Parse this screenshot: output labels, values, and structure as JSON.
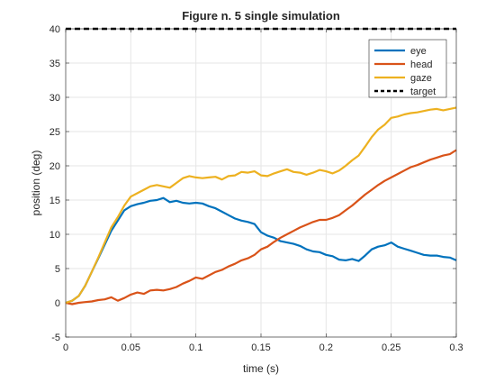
{
  "chart_data": {
    "type": "line",
    "title": "Figure n. 5 single simulation",
    "xlabel": "time (s)",
    "ylabel": "position (deg)",
    "xlim": [
      0,
      0.3
    ],
    "ylim": [
      -5,
      40
    ],
    "xticks": [
      0,
      0.05,
      0.1,
      0.15,
      0.2,
      0.25,
      0.3
    ],
    "xtick_labels": [
      "0",
      "0.05",
      "0.1",
      "0.15",
      "0.2",
      "0.25",
      "0.3"
    ],
    "yticks": [
      -5,
      0,
      5,
      10,
      15,
      20,
      25,
      30,
      35,
      40
    ],
    "ytick_labels": [
      "-5",
      "0",
      "5",
      "10",
      "15",
      "20",
      "25",
      "30",
      "35",
      "40"
    ],
    "grid": true,
    "legend_position": "top-right",
    "series": [
      {
        "name": "eye",
        "color": "#0072BD",
        "style": "solid",
        "x": [
          0,
          0.005,
          0.01,
          0.015,
          0.02,
          0.025,
          0.03,
          0.035,
          0.04,
          0.045,
          0.05,
          0.055,
          0.06,
          0.065,
          0.07,
          0.075,
          0.08,
          0.085,
          0.09,
          0.095,
          0.1,
          0.105,
          0.11,
          0.115,
          0.12,
          0.125,
          0.13,
          0.135,
          0.14,
          0.145,
          0.15,
          0.155,
          0.16,
          0.165,
          0.17,
          0.175,
          0.18,
          0.185,
          0.19,
          0.195,
          0.2,
          0.205,
          0.21,
          0.215,
          0.22,
          0.225,
          0.23,
          0.235,
          0.24,
          0.245,
          0.25,
          0.255,
          0.26,
          0.265,
          0.27,
          0.275,
          0.28,
          0.285,
          0.29,
          0.295,
          0.3
        ],
        "y": [
          0,
          0.3,
          1.0,
          2.5,
          4.5,
          6.5,
          8.5,
          10.5,
          12.0,
          13.5,
          14.1,
          14.4,
          14.6,
          14.9,
          15.0,
          15.3,
          14.7,
          14.9,
          14.6,
          14.5,
          14.6,
          14.5,
          14.1,
          13.8,
          13.3,
          12.8,
          12.3,
          12.0,
          11.8,
          11.5,
          10.3,
          9.8,
          9.5,
          9.0,
          8.8,
          8.6,
          8.3,
          7.8,
          7.5,
          7.4,
          7.0,
          6.8,
          6.3,
          6.2,
          6.4,
          6.1,
          6.9,
          7.8,
          8.2,
          8.4,
          8.8,
          8.2,
          7.9,
          7.6,
          7.3,
          7.0,
          6.9,
          6.9,
          6.7,
          6.6,
          6.2
        ]
      },
      {
        "name": "head",
        "color": "#D95319",
        "style": "solid",
        "x": [
          0,
          0.005,
          0.01,
          0.015,
          0.02,
          0.025,
          0.03,
          0.035,
          0.04,
          0.045,
          0.05,
          0.055,
          0.06,
          0.065,
          0.07,
          0.075,
          0.08,
          0.085,
          0.09,
          0.095,
          0.1,
          0.105,
          0.11,
          0.115,
          0.12,
          0.125,
          0.13,
          0.135,
          0.14,
          0.145,
          0.15,
          0.155,
          0.16,
          0.165,
          0.17,
          0.175,
          0.18,
          0.185,
          0.19,
          0.195,
          0.2,
          0.205,
          0.21,
          0.215,
          0.22,
          0.225,
          0.23,
          0.235,
          0.24,
          0.245,
          0.25,
          0.255,
          0.26,
          0.265,
          0.27,
          0.275,
          0.28,
          0.285,
          0.29,
          0.295,
          0.3
        ],
        "y": [
          0,
          -0.2,
          0.0,
          0.1,
          0.2,
          0.4,
          0.5,
          0.8,
          0.3,
          0.7,
          1.2,
          1.5,
          1.3,
          1.8,
          1.9,
          1.8,
          2.0,
          2.3,
          2.8,
          3.2,
          3.7,
          3.5,
          4.0,
          4.5,
          4.8,
          5.3,
          5.7,
          6.2,
          6.5,
          7.0,
          7.8,
          8.2,
          8.9,
          9.5,
          10.0,
          10.5,
          11.0,
          11.4,
          11.8,
          12.1,
          12.1,
          12.4,
          12.8,
          13.5,
          14.2,
          15.0,
          15.8,
          16.5,
          17.2,
          17.8,
          18.3,
          18.8,
          19.3,
          19.8,
          20.1,
          20.5,
          20.9,
          21.2,
          21.5,
          21.7,
          22.3
        ]
      },
      {
        "name": "gaze",
        "color": "#EDB120",
        "style": "solid",
        "x": [
          0,
          0.005,
          0.01,
          0.015,
          0.02,
          0.025,
          0.03,
          0.035,
          0.04,
          0.045,
          0.05,
          0.055,
          0.06,
          0.065,
          0.07,
          0.075,
          0.08,
          0.085,
          0.09,
          0.095,
          0.1,
          0.105,
          0.11,
          0.115,
          0.12,
          0.125,
          0.13,
          0.135,
          0.14,
          0.145,
          0.15,
          0.155,
          0.16,
          0.165,
          0.17,
          0.175,
          0.18,
          0.185,
          0.19,
          0.195,
          0.2,
          0.205,
          0.21,
          0.215,
          0.22,
          0.225,
          0.23,
          0.235,
          0.24,
          0.245,
          0.25,
          0.255,
          0.26,
          0.265,
          0.27,
          0.275,
          0.28,
          0.285,
          0.29,
          0.295,
          0.3
        ],
        "y": [
          0,
          0.3,
          1.0,
          2.5,
          4.5,
          6.6,
          8.8,
          11.0,
          12.5,
          14.2,
          15.5,
          16.0,
          16.5,
          17.0,
          17.2,
          17.0,
          16.8,
          17.5,
          18.2,
          18.5,
          18.3,
          18.2,
          18.3,
          18.4,
          18.0,
          18.5,
          18.6,
          19.1,
          19.0,
          19.2,
          18.6,
          18.5,
          18.9,
          19.2,
          19.5,
          19.1,
          19.0,
          18.7,
          19.0,
          19.4,
          19.2,
          18.9,
          19.3,
          20.0,
          20.8,
          21.5,
          22.8,
          24.2,
          25.3,
          26.0,
          27.0,
          27.2,
          27.5,
          27.7,
          27.8,
          28.0,
          28.2,
          28.3,
          28.1,
          28.3,
          28.5
        ]
      },
      {
        "name": "target",
        "color": "#000000",
        "style": "dashed",
        "x": [
          0,
          0.3
        ],
        "y": [
          40,
          40
        ]
      }
    ]
  }
}
